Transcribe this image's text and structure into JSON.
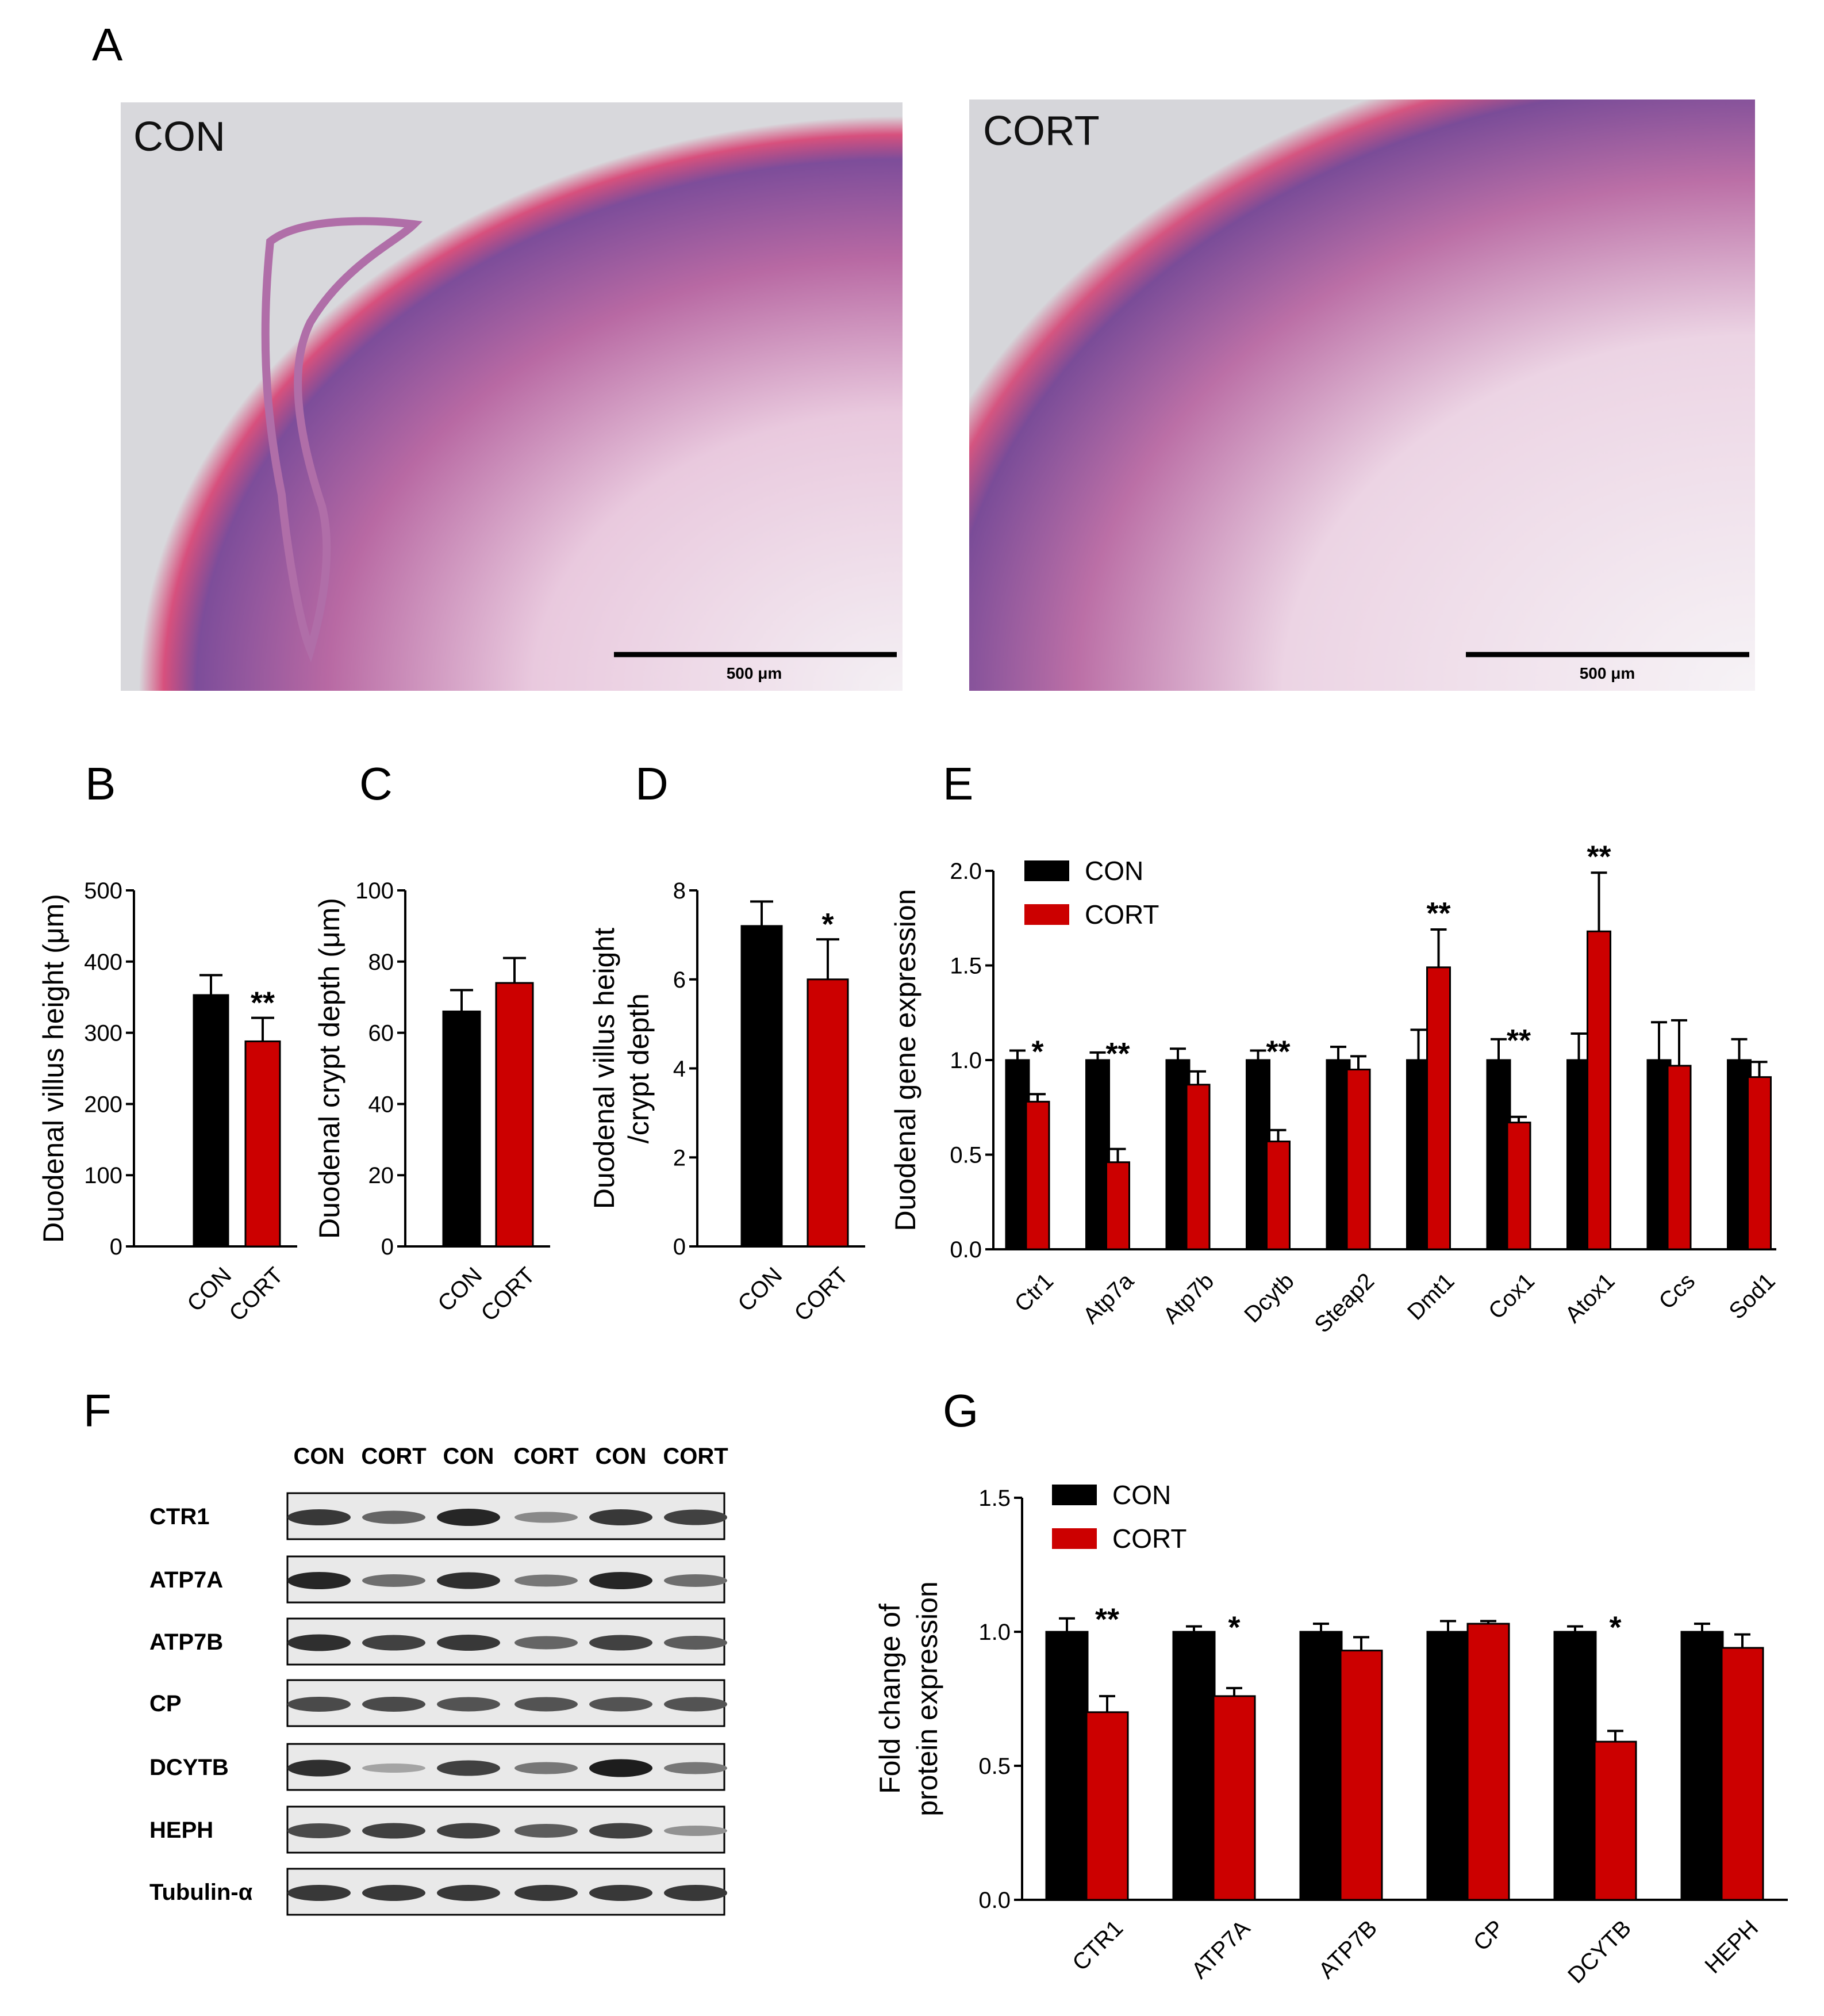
{
  "panels": {
    "A": "A",
    "B": "B",
    "C": "C",
    "D": "D",
    "E": "E",
    "F": "F",
    "G": "G"
  },
  "panel_a": {
    "left_label": "CON",
    "right_label": "CORT",
    "scale_bar": "500 μm"
  },
  "colors": {
    "con": "#000000",
    "cort": "#cc0000",
    "tissue": "#c0609a",
    "background": "#dcdcde"
  },
  "chart_data": [
    {
      "panel": "B",
      "type": "bar",
      "categories": [
        "CON",
        "CORT"
      ],
      "values": [
        353,
        288
      ],
      "errors": [
        28,
        33
      ],
      "annotations": [
        "",
        "**"
      ],
      "ylabel": "Duodenal villus height (μm)",
      "ylim": [
        0,
        500
      ],
      "yticks": [
        0,
        100,
        200,
        300,
        400,
        500
      ]
    },
    {
      "panel": "C",
      "type": "bar",
      "categories": [
        "CON",
        "CORT"
      ],
      "values": [
        66,
        74
      ],
      "errors": [
        6,
        7
      ],
      "annotations": [
        "",
        ""
      ],
      "ylabel": "Duodenal crypt depth (μm)",
      "ylim": [
        0,
        100
      ],
      "yticks": [
        0,
        20,
        40,
        60,
        80,
        100
      ]
    },
    {
      "panel": "D",
      "type": "bar",
      "categories": [
        "CON",
        "CORT"
      ],
      "values": [
        7.2,
        6.0
      ],
      "errors": [
        0.55,
        0.9
      ],
      "annotations": [
        "",
        "*"
      ],
      "ylabel": "Duodenal villus height",
      "ylabel2": "/crypt depth",
      "ylim": [
        0,
        8
      ],
      "yticks": [
        0,
        2,
        4,
        6,
        8
      ]
    },
    {
      "panel": "E",
      "type": "bar",
      "categories": [
        "Ctr1",
        "Atp7a",
        "Atp7b",
        "Dcytb",
        "Steap2",
        "Dmt1",
        "Cox1",
        "Atox1",
        "Ccs",
        "Sod1"
      ],
      "series": [
        {
          "name": "CON",
          "values": [
            1.0,
            1.0,
            1.0,
            1.0,
            1.0,
            1.0,
            1.0,
            1.0,
            1.0,
            1.0
          ],
          "errors": [
            0.05,
            0.04,
            0.06,
            0.05,
            0.07,
            0.16,
            0.11,
            0.14,
            0.2,
            0.11
          ]
        },
        {
          "name": "CORT",
          "values": [
            0.78,
            0.46,
            0.87,
            0.57,
            0.95,
            1.49,
            0.67,
            1.68,
            0.97,
            0.91
          ],
          "errors": [
            0.04,
            0.07,
            0.07,
            0.06,
            0.07,
            0.2,
            0.03,
            0.31,
            0.24,
            0.08
          ]
        }
      ],
      "annotations": [
        "*",
        "**",
        "",
        "**",
        "",
        "**",
        "**",
        "**",
        "",
        ""
      ],
      "ylabel": "Duodenal gene expression",
      "ylim": [
        0,
        2.0
      ],
      "yticks": [
        "0.0",
        "0.5",
        "1.0",
        "1.5",
        "2.0"
      ],
      "legend": "top-left"
    },
    {
      "panel": "G",
      "type": "bar",
      "categories": [
        "CTR1",
        "ATP7A",
        "ATP7B",
        "CP",
        "DCYTB",
        "HEPH"
      ],
      "series": [
        {
          "name": "CON",
          "values": [
            1.0,
            1.0,
            1.0,
            1.0,
            1.0,
            1.0
          ],
          "errors": [
            0.05,
            0.02,
            0.03,
            0.04,
            0.02,
            0.03
          ]
        },
        {
          "name": "CORT",
          "values": [
            0.7,
            0.76,
            0.93,
            1.03,
            0.59,
            0.94
          ],
          "errors": [
            0.06,
            0.03,
            0.05,
            0.01,
            0.04,
            0.05
          ]
        }
      ],
      "annotations": [
        "**",
        "*",
        "",
        "",
        "*",
        ""
      ],
      "ylabel": "Fold change of",
      "ylabel2": "protein expression",
      "ylim": [
        0,
        1.5
      ],
      "yticks": [
        "0.0",
        "0.5",
        "1.0",
        "1.5"
      ],
      "legend": "top-left"
    }
  ],
  "western": {
    "columns": [
      "CON",
      "CORT",
      "CON",
      "CORT",
      "CON",
      "CORT"
    ],
    "rows": [
      {
        "label": "CTR1",
        "intensity": [
          0.8,
          0.55,
          0.9,
          0.35,
          0.8,
          0.75
        ]
      },
      {
        "label": "ATP7A",
        "intensity": [
          0.9,
          0.5,
          0.85,
          0.45,
          0.9,
          0.5
        ]
      },
      {
        "label": "ATP7B",
        "intensity": [
          0.85,
          0.75,
          0.8,
          0.55,
          0.75,
          0.6
        ]
      },
      {
        "label": "CP",
        "intensity": [
          0.7,
          0.7,
          0.65,
          0.65,
          0.65,
          0.65
        ]
      },
      {
        "label": "DCYTB",
        "intensity": [
          0.85,
          0.2,
          0.75,
          0.45,
          0.95,
          0.45
        ]
      },
      {
        "label": "HEPH",
        "intensity": [
          0.7,
          0.75,
          0.75,
          0.6,
          0.75,
          0.3
        ]
      },
      {
        "label": "Tubulin-α",
        "intensity": [
          0.8,
          0.8,
          0.8,
          0.8,
          0.8,
          0.8
        ]
      }
    ]
  }
}
